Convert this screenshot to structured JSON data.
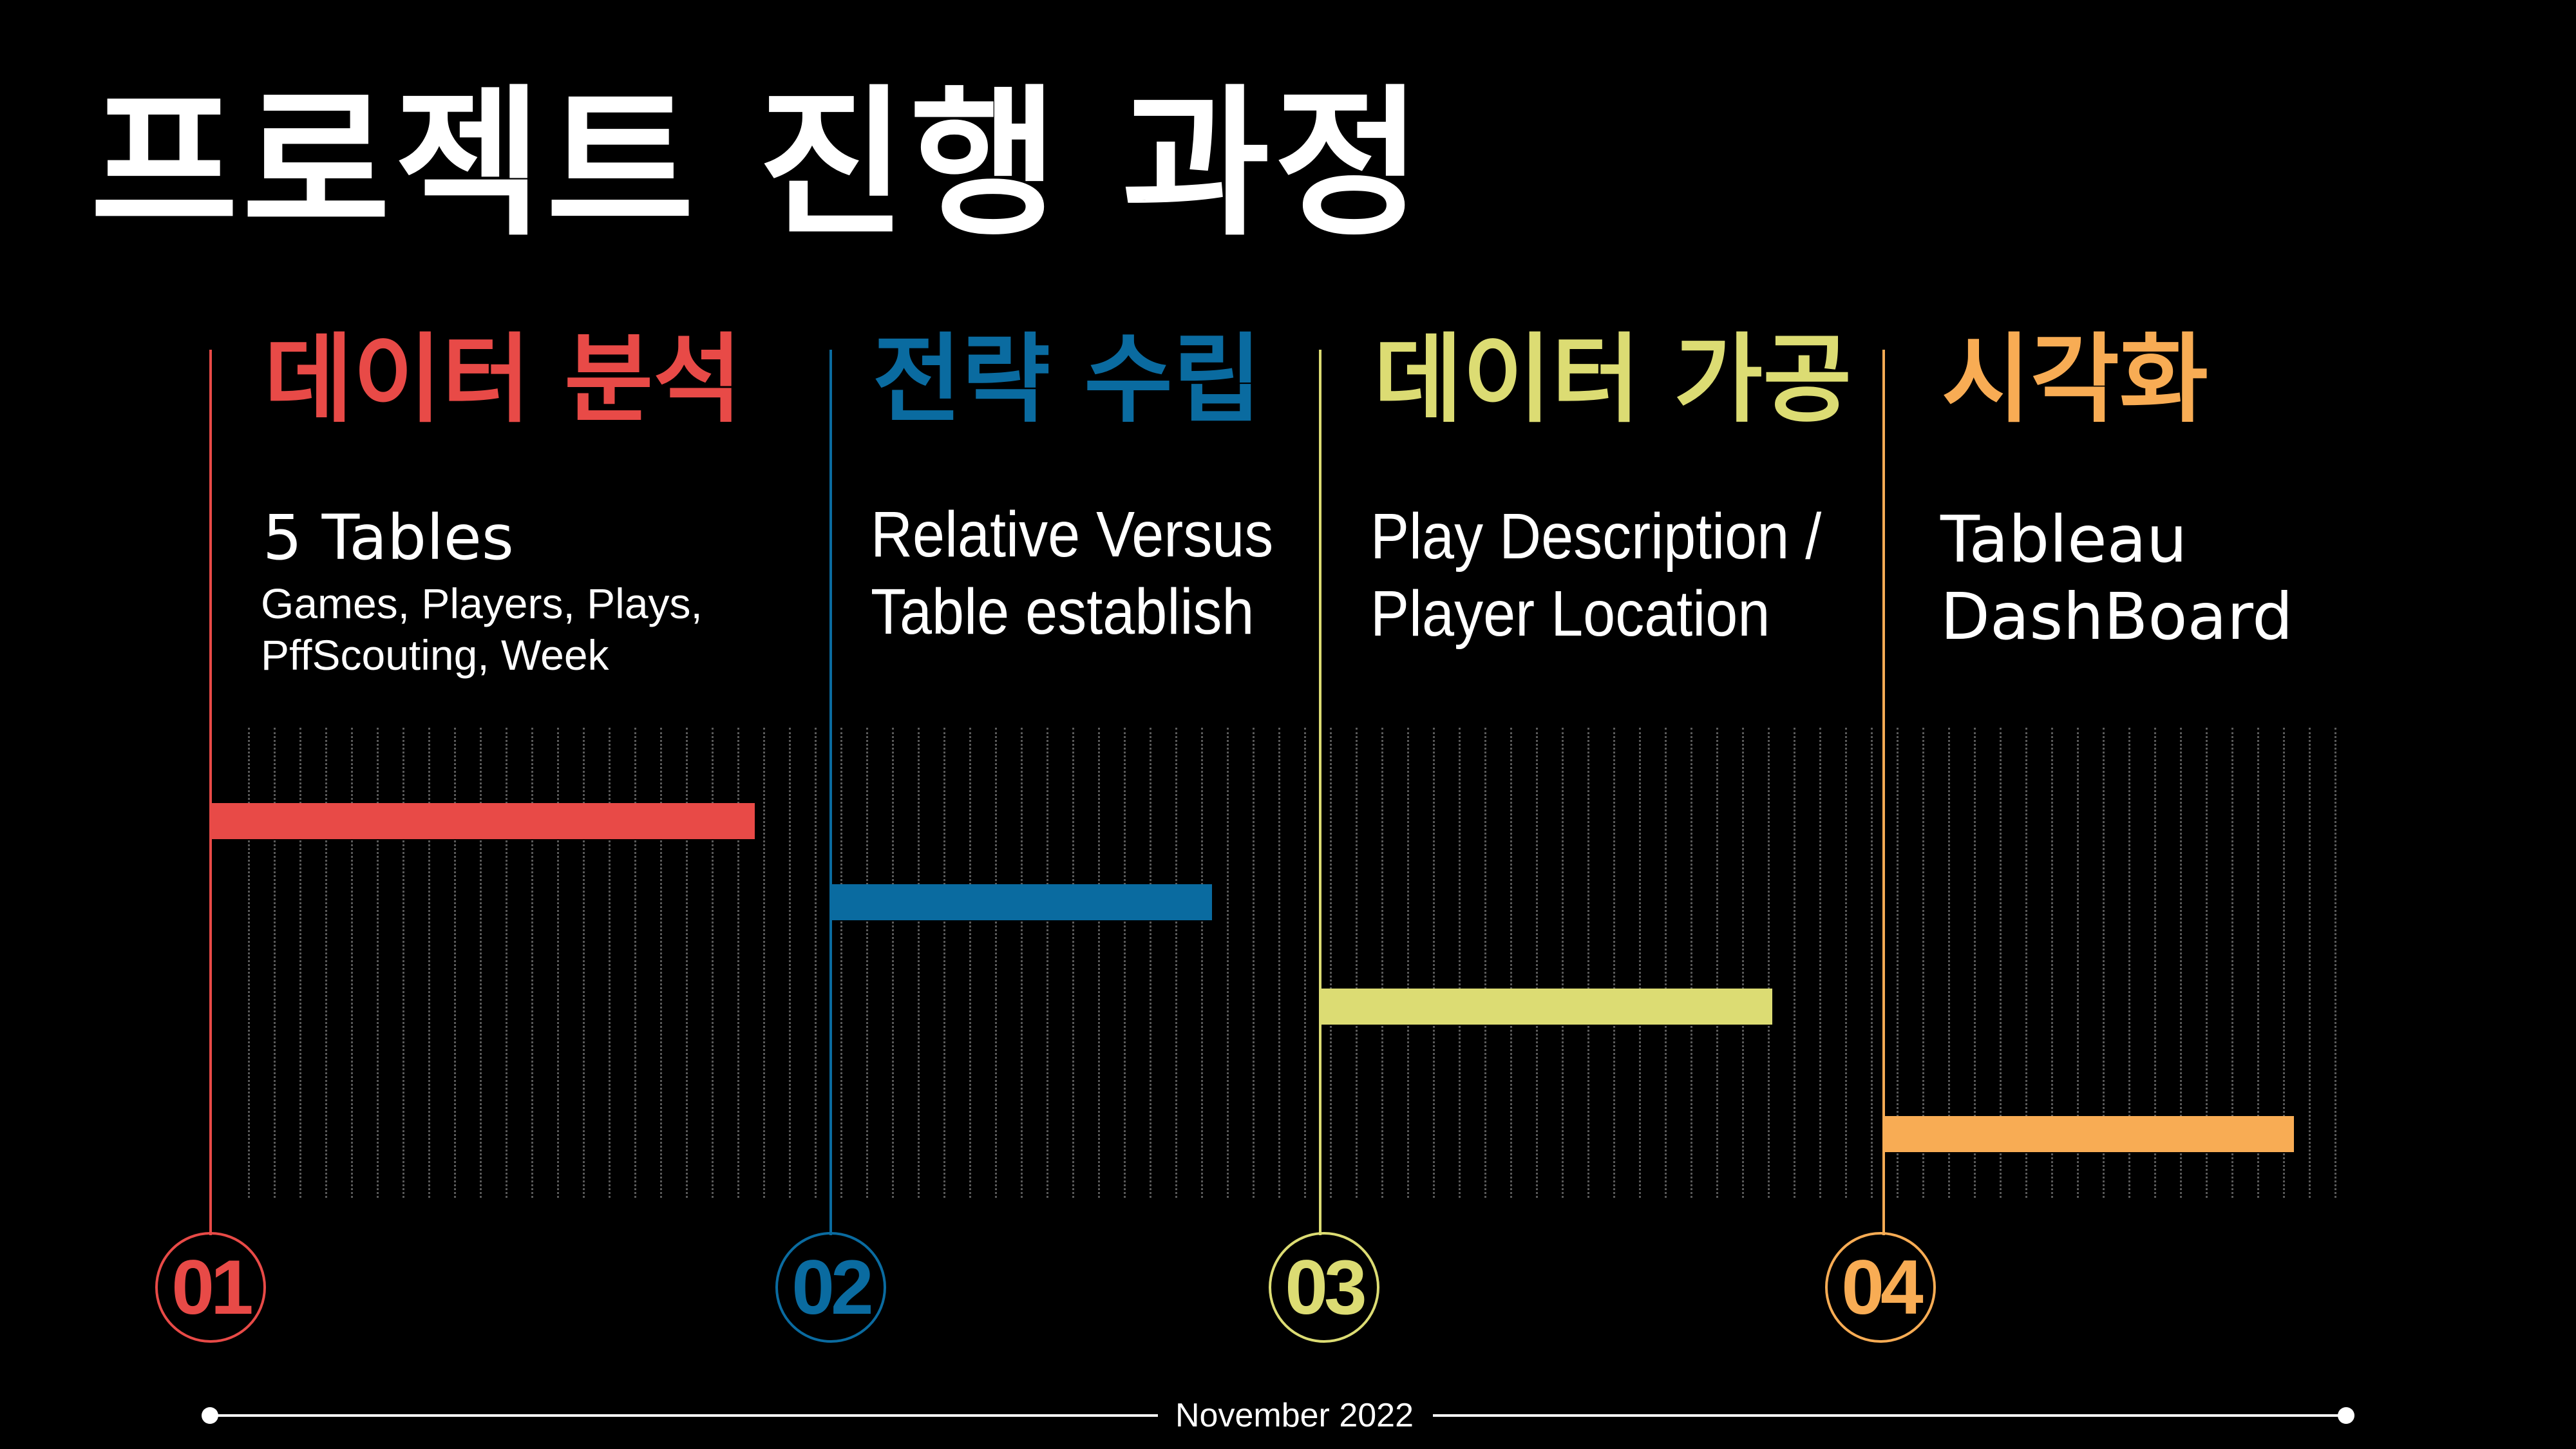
{
  "title": "프로젝트 진행 과정",
  "colors": {
    "background": "#000000",
    "phase1": "#e84a47",
    "phase2": "#0a6ba0",
    "phase3": "#dcdc73",
    "phase4": "#f8ac54"
  },
  "phases": [
    {
      "number": "01",
      "title": "데이터 분석",
      "desc_main": "5 Tables",
      "desc_sub_1": "Games, Players, Plays,",
      "desc_sub_2": "PffScouting, Week"
    },
    {
      "number": "02",
      "title": "전략 수립",
      "desc_1": "Relative Versus",
      "desc_2": "Table establish"
    },
    {
      "number": "03",
      "title": "데이터 가공",
      "desc_1": "Play Description /",
      "desc_2": "Player Location"
    },
    {
      "number": "04",
      "title": "시각화",
      "desc_1": "Tableau",
      "desc_2": "DashBoard"
    }
  ],
  "footer": {
    "date": "November 2022"
  }
}
